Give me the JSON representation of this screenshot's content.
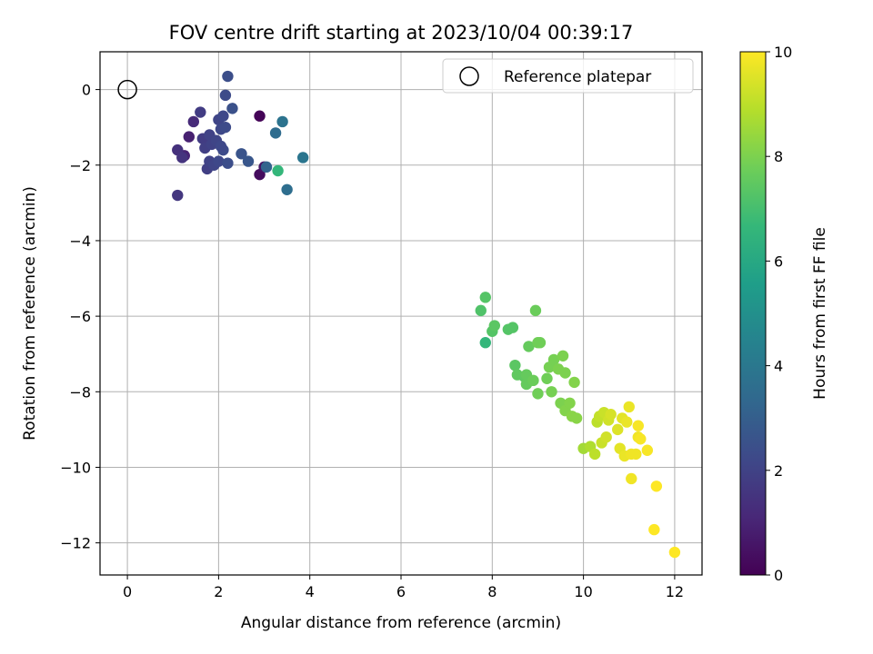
{
  "chart_data": {
    "type": "scatter",
    "title": "FOV centre drift starting at 2023/10/04 00:39:17",
    "xlabel": "Angular distance from reference (arcmin)",
    "ylabel": "Rotation from reference (arcmin)",
    "xlim": [
      -0.6,
      12.6
    ],
    "ylim": [
      -12.85,
      1.0
    ],
    "xticks": [
      0,
      2,
      4,
      6,
      8,
      10,
      12
    ],
    "yticks": [
      0,
      -2,
      -4,
      -6,
      -8,
      -10,
      -12
    ],
    "grid": true,
    "legend": {
      "placement": "top-right",
      "entries": [
        "Reference platepar"
      ]
    },
    "reference_point": {
      "x": 0,
      "y": 0
    },
    "colorbar": {
      "label": "Hours from first FF file",
      "range": [
        0,
        10
      ],
      "ticks": [
        0,
        2,
        4,
        6,
        8,
        10
      ],
      "colormap": "viridis",
      "stops": [
        "#440154",
        "#482878",
        "#3e4989",
        "#31688e",
        "#26828e",
        "#1f9e89",
        "#35b779",
        "#6ece58",
        "#b5de2b",
        "#fde725"
      ]
    },
    "points": [
      {
        "x": 2.9,
        "y": -0.7,
        "h": 0.1
      },
      {
        "x": 2.9,
        "y": -2.25,
        "h": 0.3
      },
      {
        "x": 3.0,
        "y": -2.05,
        "h": 0.5
      },
      {
        "x": 1.35,
        "y": -1.25,
        "h": 0.9
      },
      {
        "x": 1.25,
        "y": -1.75,
        "h": 1.0
      },
      {
        "x": 1.45,
        "y": -0.85,
        "h": 1.2
      },
      {
        "x": 1.1,
        "y": -1.6,
        "h": 1.4
      },
      {
        "x": 1.2,
        "y": -1.8,
        "h": 1.5
      },
      {
        "x": 1.1,
        "y": -2.8,
        "h": 1.6
      },
      {
        "x": 1.6,
        "y": -0.6,
        "h": 1.8
      },
      {
        "x": 1.65,
        "y": -1.3,
        "h": 1.8
      },
      {
        "x": 1.7,
        "y": -1.55,
        "h": 1.9
      },
      {
        "x": 1.75,
        "y": -2.1,
        "h": 1.9
      },
      {
        "x": 1.8,
        "y": -1.2,
        "h": 2.0
      },
      {
        "x": 1.8,
        "y": -1.9,
        "h": 2.0
      },
      {
        "x": 1.85,
        "y": -1.45,
        "h": 2.0
      },
      {
        "x": 1.9,
        "y": -2.0,
        "h": 2.1
      },
      {
        "x": 1.95,
        "y": -1.35,
        "h": 2.1
      },
      {
        "x": 2.0,
        "y": -0.8,
        "h": 2.1
      },
      {
        "x": 2.0,
        "y": -1.9,
        "h": 2.2
      },
      {
        "x": 2.05,
        "y": -1.05,
        "h": 2.2
      },
      {
        "x": 2.1,
        "y": -0.7,
        "h": 2.2
      },
      {
        "x": 2.1,
        "y": -1.6,
        "h": 2.3
      },
      {
        "x": 2.15,
        "y": -0.15,
        "h": 2.3
      },
      {
        "x": 2.15,
        "y": -1.0,
        "h": 2.3
      },
      {
        "x": 2.2,
        "y": 0.35,
        "h": 2.4
      },
      {
        "x": 2.2,
        "y": -1.95,
        "h": 2.4
      },
      {
        "x": 2.3,
        "y": -0.5,
        "h": 2.5
      },
      {
        "x": 2.05,
        "y": -1.5,
        "h": 2.2
      },
      {
        "x": 2.5,
        "y": -1.7,
        "h": 2.6
      },
      {
        "x": 2.65,
        "y": -1.9,
        "h": 2.7
      },
      {
        "x": 3.05,
        "y": -2.05,
        "h": 3.2
      },
      {
        "x": 3.25,
        "y": -1.15,
        "h": 3.5
      },
      {
        "x": 3.4,
        "y": -0.85,
        "h": 3.8
      },
      {
        "x": 3.5,
        "y": -2.65,
        "h": 3.6
      },
      {
        "x": 3.85,
        "y": -1.8,
        "h": 3.9
      },
      {
        "x": 3.3,
        "y": -2.15,
        "h": 6.6
      },
      {
        "x": 7.75,
        "y": -5.85,
        "h": 7.2
      },
      {
        "x": 7.85,
        "y": -6.7,
        "h": 6.6
      },
      {
        "x": 7.85,
        "y": -5.5,
        "h": 7.3
      },
      {
        "x": 8.0,
        "y": -6.4,
        "h": 7.3
      },
      {
        "x": 8.05,
        "y": -6.25,
        "h": 7.4
      },
      {
        "x": 8.35,
        "y": -6.35,
        "h": 7.3
      },
      {
        "x": 8.45,
        "y": -6.3,
        "h": 7.3
      },
      {
        "x": 8.5,
        "y": -7.3,
        "h": 7.4
      },
      {
        "x": 8.55,
        "y": -7.55,
        "h": 7.5
      },
      {
        "x": 8.7,
        "y": -7.6,
        "h": 7.5
      },
      {
        "x": 8.75,
        "y": -7.8,
        "h": 7.6
      },
      {
        "x": 8.75,
        "y": -7.55,
        "h": 7.6
      },
      {
        "x": 8.8,
        "y": -6.8,
        "h": 7.6
      },
      {
        "x": 8.9,
        "y": -7.7,
        "h": 7.7
      },
      {
        "x": 8.95,
        "y": -5.85,
        "h": 7.7
      },
      {
        "x": 9.0,
        "y": -8.05,
        "h": 7.8
      },
      {
        "x": 9.0,
        "y": -6.7,
        "h": 7.8
      },
      {
        "x": 9.05,
        "y": -6.7,
        "h": 7.8
      },
      {
        "x": 9.2,
        "y": -7.65,
        "h": 7.8
      },
      {
        "x": 9.25,
        "y": -7.35,
        "h": 7.9
      },
      {
        "x": 9.3,
        "y": -8.0,
        "h": 7.9
      },
      {
        "x": 9.35,
        "y": -7.15,
        "h": 7.9
      },
      {
        "x": 9.45,
        "y": -7.4,
        "h": 8.0
      },
      {
        "x": 9.5,
        "y": -8.3,
        "h": 8.0
      },
      {
        "x": 9.55,
        "y": -7.05,
        "h": 8.0
      },
      {
        "x": 9.6,
        "y": -7.5,
        "h": 8.0
      },
      {
        "x": 9.6,
        "y": -8.5,
        "h": 8.1
      },
      {
        "x": 9.7,
        "y": -8.3,
        "h": 8.1
      },
      {
        "x": 9.75,
        "y": -8.65,
        "h": 8.2
      },
      {
        "x": 9.8,
        "y": -7.75,
        "h": 8.1
      },
      {
        "x": 9.85,
        "y": -8.7,
        "h": 8.2
      },
      {
        "x": 10.0,
        "y": -9.5,
        "h": 8.6
      },
      {
        "x": 10.15,
        "y": -9.45,
        "h": 8.8
      },
      {
        "x": 10.25,
        "y": -9.65,
        "h": 9.0
      },
      {
        "x": 10.3,
        "y": -8.8,
        "h": 9.0
      },
      {
        "x": 10.35,
        "y": -8.65,
        "h": 9.1
      },
      {
        "x": 10.4,
        "y": -9.35,
        "h": 9.2
      },
      {
        "x": 10.45,
        "y": -8.55,
        "h": 9.2
      },
      {
        "x": 10.5,
        "y": -9.2,
        "h": 9.3
      },
      {
        "x": 10.55,
        "y": -8.75,
        "h": 9.3
      },
      {
        "x": 10.6,
        "y": -8.6,
        "h": 9.4
      },
      {
        "x": 10.75,
        "y": -9.0,
        "h": 9.5
      },
      {
        "x": 10.8,
        "y": -9.5,
        "h": 9.6
      },
      {
        "x": 10.85,
        "y": -8.7,
        "h": 9.6
      },
      {
        "x": 10.9,
        "y": -9.7,
        "h": 9.7
      },
      {
        "x": 10.95,
        "y": -8.8,
        "h": 9.7
      },
      {
        "x": 11.0,
        "y": -8.4,
        "h": 9.7
      },
      {
        "x": 11.05,
        "y": -9.65,
        "h": 9.8
      },
      {
        "x": 11.05,
        "y": -10.3,
        "h": 9.8
      },
      {
        "x": 11.15,
        "y": -9.65,
        "h": 9.8
      },
      {
        "x": 11.2,
        "y": -9.2,
        "h": 9.8
      },
      {
        "x": 11.2,
        "y": -8.9,
        "h": 9.9
      },
      {
        "x": 11.25,
        "y": -9.25,
        "h": 9.9
      },
      {
        "x": 11.4,
        "y": -9.55,
        "h": 9.9
      },
      {
        "x": 11.55,
        "y": -11.65,
        "h": 10.0
      },
      {
        "x": 11.6,
        "y": -10.5,
        "h": 10.0
      },
      {
        "x": 12.0,
        "y": -12.25,
        "h": 10.0
      }
    ]
  }
}
